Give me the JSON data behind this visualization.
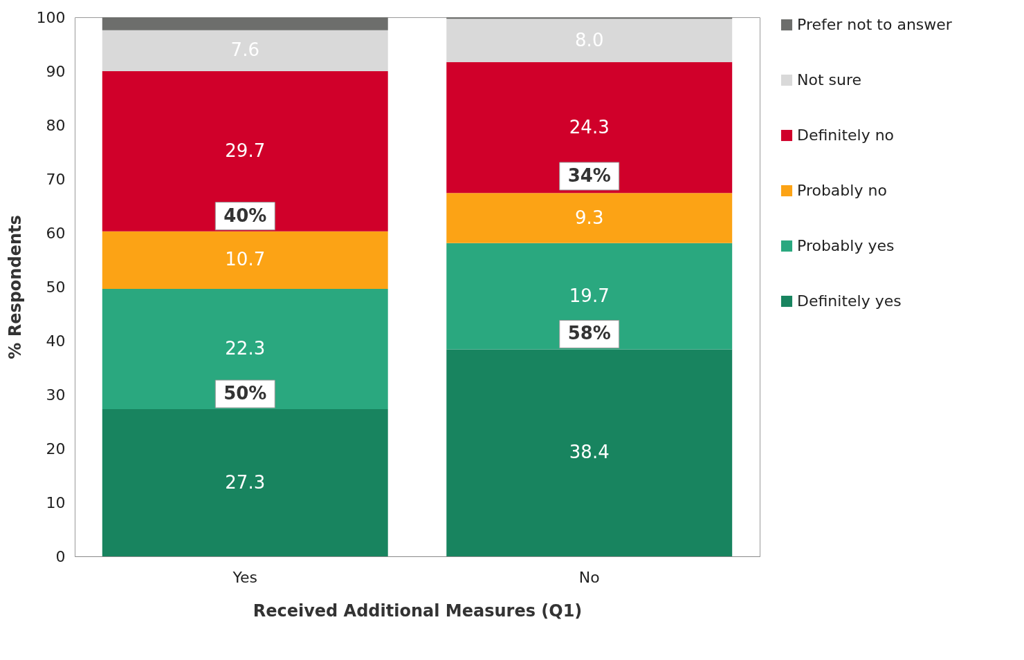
{
  "chart_data": {
    "type": "bar",
    "stacked": true,
    "xlabel": "Received Additional Measures (Q1)",
    "ylabel": "% Respondents",
    "categories": [
      "Yes",
      "No"
    ],
    "series": [
      {
        "name": "Definitely yes",
        "color": "#18845f",
        "values": [
          27.3,
          38.4
        ],
        "value_labels": [
          "27.3",
          "38.4"
        ]
      },
      {
        "name": "Probably yes",
        "color": "#2aa87f",
        "values": [
          22.3,
          19.7
        ],
        "value_labels": [
          "22.3",
          "19.7"
        ]
      },
      {
        "name": "Probably no",
        "color": "#fca315",
        "values": [
          10.7,
          9.3
        ],
        "value_labels": [
          "10.7",
          "9.3"
        ]
      },
      {
        "name": "Definitely no",
        "color": "#d0002a",
        "values": [
          29.7,
          24.3
        ],
        "value_labels": [
          "29.7",
          "24.3"
        ]
      },
      {
        "name": "Not sure",
        "color": "#d9d9d9",
        "values": [
          7.6,
          8.0
        ],
        "value_labels": [
          "7.6",
          "8.0"
        ]
      },
      {
        "name": "Prefer not to answer",
        "color": "#6d6e6c",
        "values": [
          2.4,
          0.3
        ],
        "value_labels": [
          null,
          null
        ]
      }
    ],
    "ylim": [
      0,
      100
    ],
    "yticks": [
      0,
      10,
      20,
      30,
      40,
      50,
      60,
      70,
      80,
      90,
      100
    ],
    "grid": false,
    "legend": "right",
    "annotations": [
      {
        "text": "50%",
        "x": "Yes",
        "y": 27.3
      },
      {
        "text": "40%",
        "x": "Yes",
        "y": 60.3
      },
      {
        "text": "58%",
        "x": "No",
        "y": 38.4
      },
      {
        "text": "34%",
        "x": "No",
        "y": 67.7
      }
    ]
  }
}
